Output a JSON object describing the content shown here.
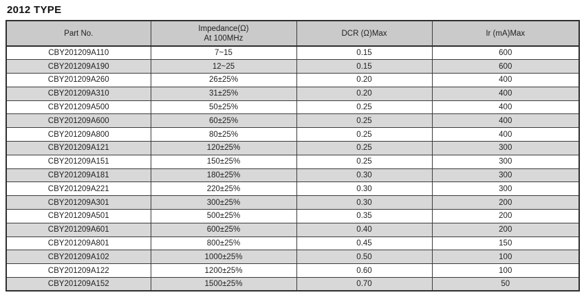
{
  "page": {
    "title": "2012 TYPE"
  },
  "colors": {
    "header_bg": "#cacaca",
    "stripe_bg": "#d8d8d8",
    "row_bg": "#ffffff",
    "border": "#2e2e2e",
    "text": "#1f1f1f"
  },
  "table": {
    "columns": [
      {
        "lines": [
          "Part No."
        ]
      },
      {
        "lines": [
          "Impedance(Ω)",
          "At 100MHz"
        ]
      },
      {
        "lines": [
          "DCR (Ω)Max"
        ]
      },
      {
        "lines": [
          "Ir (mA)Max"
        ]
      }
    ],
    "rows": [
      {
        "part_no": "CBY201209A110",
        "impedance": "7~15",
        "dcr": "0.15",
        "ir": "600"
      },
      {
        "part_no": "CBY201209A190",
        "impedance": "12~25",
        "dcr": "0.15",
        "ir": "600"
      },
      {
        "part_no": "CBY201209A260",
        "impedance": "26±25%",
        "dcr": "0.20",
        "ir": "400"
      },
      {
        "part_no": "CBY201209A310",
        "impedance": "31±25%",
        "dcr": "0.20",
        "ir": "400"
      },
      {
        "part_no": "CBY201209A500",
        "impedance": "50±25%",
        "dcr": "0.25",
        "ir": "400"
      },
      {
        "part_no": "CBY201209A600",
        "impedance": "60±25%",
        "dcr": "0.25",
        "ir": "400"
      },
      {
        "part_no": "CBY201209A800",
        "impedance": "80±25%",
        "dcr": "0.25",
        "ir": "400"
      },
      {
        "part_no": "CBY201209A121",
        "impedance": "120±25%",
        "dcr": "0.25",
        "ir": "300"
      },
      {
        "part_no": "CBY201209A151",
        "impedance": "150±25%",
        "dcr": "0.25",
        "ir": "300"
      },
      {
        "part_no": "CBY201209A181",
        "impedance": "180±25%",
        "dcr": "0.30",
        "ir": "300"
      },
      {
        "part_no": "CBY201209A221",
        "impedance": "220±25%",
        "dcr": "0.30",
        "ir": "300"
      },
      {
        "part_no": "CBY201209A301",
        "impedance": "300±25%",
        "dcr": "0.30",
        "ir": "200"
      },
      {
        "part_no": "CBY201209A501",
        "impedance": "500±25%",
        "dcr": "0.35",
        "ir": "200"
      },
      {
        "part_no": "CBY201209A601",
        "impedance": "600±25%",
        "dcr": "0.40",
        "ir": "200"
      },
      {
        "part_no": "CBY201209A801",
        "impedance": "800±25%",
        "dcr": "0.45",
        "ir": "150"
      },
      {
        "part_no": "CBY201209A102",
        "impedance": "1000±25%",
        "dcr": "0.50",
        "ir": "100"
      },
      {
        "part_no": "CBY201209A122",
        "impedance": "1200±25%",
        "dcr": "0.60",
        "ir": "100"
      },
      {
        "part_no": "CBY201209A152",
        "impedance": "1500±25%",
        "dcr": "0.70",
        "ir": "50"
      }
    ]
  }
}
